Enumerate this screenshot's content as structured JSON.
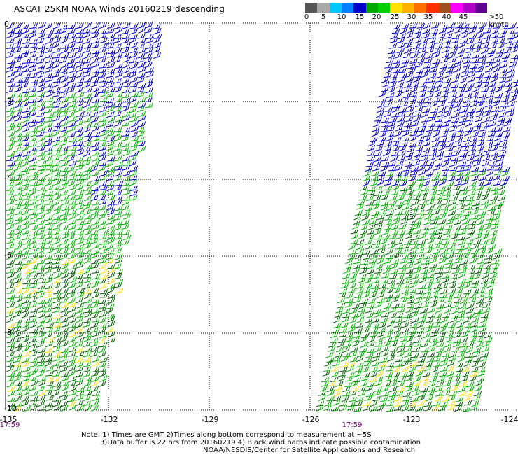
{
  "title": "ASCAT 25KM NOAA Winds 20160219 descending",
  "colorbar": {
    "colors": [
      "#555555",
      "#a9a9a9",
      "#00c8ff",
      "#0080ff",
      "#0000c8",
      "#00a800",
      "#00d000",
      "#ffe000",
      "#ffb000",
      "#ff7000",
      "#ff3000",
      "#a05020",
      "#ff00ff",
      "#b000c8",
      "#600090"
    ],
    "labels": [
      "0",
      "5",
      "10",
      "15",
      "20",
      "25",
      "30",
      "35",
      "40",
      "45",
      ">50 knots"
    ]
  },
  "axes": {
    "lat_labels": [
      "0",
      "-2",
      "-4",
      "-6",
      "-8",
      "-10"
    ],
    "lon_labels": [
      "-135",
      "-132",
      "-129",
      "-126",
      "-123",
      "-124"
    ]
  },
  "pass_times": [
    "17:59",
    "17:59"
  ],
  "notes": [
    "Note: 1) Times are GMT 2)Times along bottom correspond to measurement at ~5S",
    "3)Data buffer is 22 hrs from 20160219 4) Black wind barbs indicate possible contamination",
    "NOAA/NESDIS/Center for Satellite Applications and Research"
  ],
  "wind_colors": {
    "blue": "#0000c8",
    "green": "#00b400",
    "darkgreen": "#006400",
    "yellow": "#ffe000"
  }
}
